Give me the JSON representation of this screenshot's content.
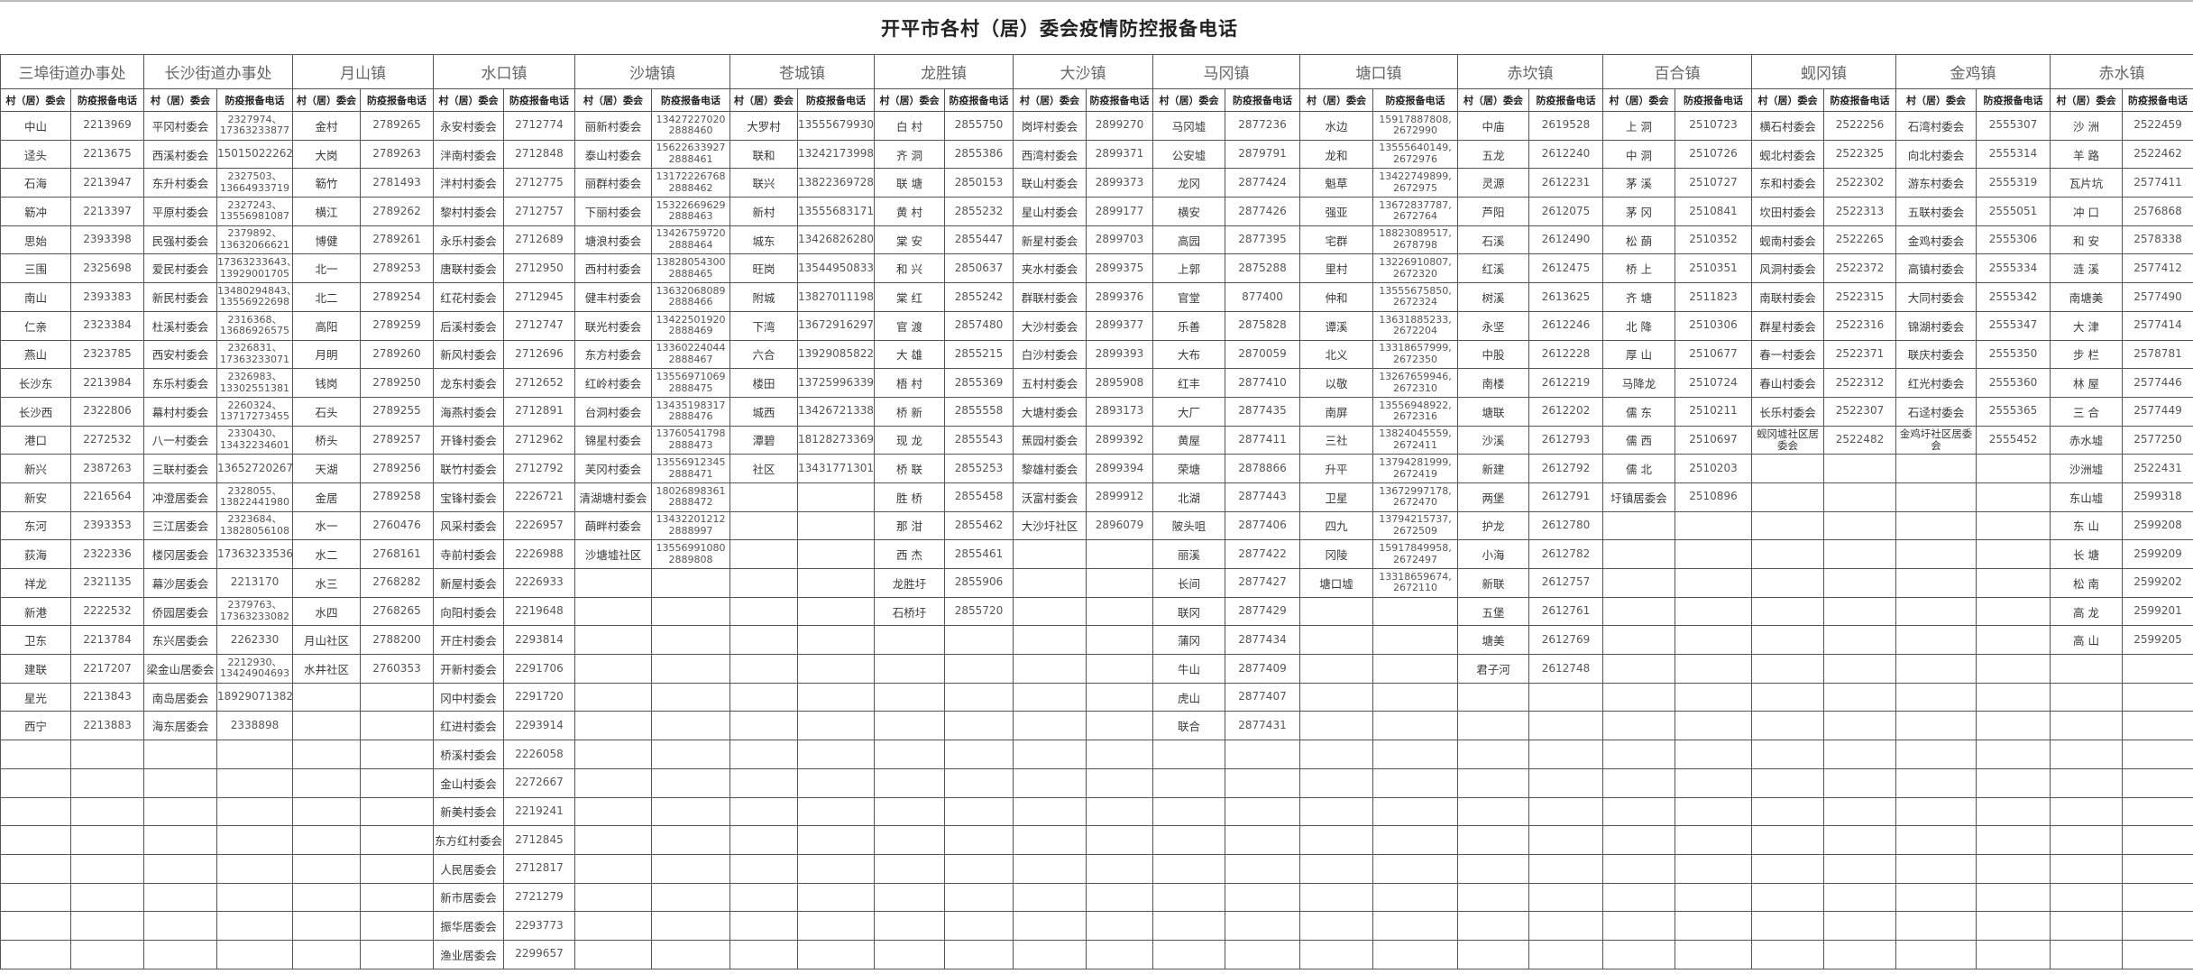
{
  "title": "开平市各村（居）委会疫情防控报备电话",
  "col_name_label": "村（居）委会",
  "col_phone_label": "防疫报备电话",
  "towns": [
    {
      "name": "三埠街道办事处",
      "rows": [
        [
          "中山",
          "2213969"
        ],
        [
          "迳头",
          "2213675"
        ],
        [
          "石海",
          "2213947"
        ],
        [
          "簕冲",
          "2213397"
        ],
        [
          "思始",
          "2393398"
        ],
        [
          "三围",
          "2325698"
        ],
        [
          "南山",
          "2393383"
        ],
        [
          "仁亲",
          "2323384"
        ],
        [
          "燕山",
          "2323785"
        ],
        [
          "长沙东",
          "2213984"
        ],
        [
          "长沙西",
          "2322806"
        ],
        [
          "港口",
          "2272532"
        ],
        [
          "新兴",
          "2387263"
        ],
        [
          "新安",
          "2216564"
        ],
        [
          "东河",
          "2393353"
        ],
        [
          "荻海",
          "2322336"
        ],
        [
          "祥龙",
          "2321135"
        ],
        [
          "新港",
          "2222532"
        ],
        [
          "卫东",
          "2213784"
        ],
        [
          "建联",
          "2217207"
        ],
        [
          "星光",
          "2213843"
        ],
        [
          "西宁",
          "2213883"
        ]
      ]
    },
    {
      "name": "长沙街道办事处",
      "rows": [
        [
          "平冈村委会",
          "2327974、\n17363233877"
        ],
        [
          "西溪村委会",
          "15015022262"
        ],
        [
          "东升村委会",
          "2327503、\n13664933719"
        ],
        [
          "平原村委会",
          "2327243、\n13556981087"
        ],
        [
          "民强村委会",
          "2379892、\n13632066621"
        ],
        [
          "爱民村委会",
          "17363233643、\n13929001705"
        ],
        [
          "新民村委会",
          "13480294843、\n13556922698"
        ],
        [
          "杜溪村委会",
          "2316368、\n13686926575"
        ],
        [
          "西安村委会",
          "2326831、\n17363233071"
        ],
        [
          "东乐村委会",
          "2326983、\n13302551381"
        ],
        [
          "幕村村委会",
          "2260324、\n13717273455"
        ],
        [
          "八一村委会",
          "2330430、\n13432234601"
        ],
        [
          "三联村委会",
          "13652720267"
        ],
        [
          "冲澄居委会",
          "2328055、\n13822441980"
        ],
        [
          "三江居委会",
          "2323684、\n13828056108"
        ],
        [
          "楼冈居委会",
          "17363233536"
        ],
        [
          "幕沙居委会",
          "2213170"
        ],
        [
          "侨园居委会",
          "2379763、\n17363233082"
        ],
        [
          "东兴居委会",
          "2262330"
        ],
        [
          "梁金山居委会",
          "2212930、\n13424904693"
        ],
        [
          "南岛居委会",
          "18929071382"
        ],
        [
          "海东居委会",
          "2338898"
        ]
      ]
    },
    {
      "name": "月山镇",
      "rows": [
        [
          "金村",
          "2789265"
        ],
        [
          "大岗",
          "2789263"
        ],
        [
          "簕竹",
          "2781493"
        ],
        [
          "横江",
          "2789262"
        ],
        [
          "博健",
          "2789261"
        ],
        [
          "北一",
          "2789253"
        ],
        [
          "北二",
          "2789254"
        ],
        [
          "高阳",
          "2789259"
        ],
        [
          "月明",
          "2789260"
        ],
        [
          "钱岗",
          "2789250"
        ],
        [
          "石头",
          "2789255"
        ],
        [
          "桥头",
          "2789257"
        ],
        [
          "天湖",
          "2789256"
        ],
        [
          "金居",
          "2789258"
        ],
        [
          "水一",
          "2760476"
        ],
        [
          "水二",
          "2768161"
        ],
        [
          "水三",
          "2768282"
        ],
        [
          "水四",
          "2768265"
        ],
        [
          "月山社区",
          "2788200"
        ],
        [
          "水井社区",
          "2760353"
        ]
      ]
    },
    {
      "name": "水口镇",
      "rows": [
        [
          "永安村委会",
          "2712774"
        ],
        [
          "泮南村委会",
          "2712848"
        ],
        [
          "泮村村委会",
          "2712775"
        ],
        [
          "黎村村委会",
          "2712757"
        ],
        [
          "永乐村委会",
          "2712689"
        ],
        [
          "唐联村委会",
          "2712950"
        ],
        [
          "红花村委会",
          "2712945"
        ],
        [
          "后溪村委会",
          "2712747"
        ],
        [
          "新风村委会",
          "2712696"
        ],
        [
          "龙东村委会",
          "2712652"
        ],
        [
          "海燕村委会",
          "2712891"
        ],
        [
          "开锋村委会",
          "2712962"
        ],
        [
          "联竹村委会",
          "2712792"
        ],
        [
          "宝锋村委会",
          "2226721"
        ],
        [
          "风采村委会",
          "2226957"
        ],
        [
          "寺前村委会",
          "2226988"
        ],
        [
          "新屋村委会",
          "2226933"
        ],
        [
          "向阳村委会",
          "2219648"
        ],
        [
          "开庄村委会",
          "2293814"
        ],
        [
          "开新村委会",
          "2291706"
        ],
        [
          "冈中村委会",
          "2291720"
        ],
        [
          "红进村委会",
          "2293914"
        ],
        [
          "桥溪村委会",
          "2226058"
        ],
        [
          "金山村委会",
          "2272667"
        ],
        [
          "新美村委会",
          "2219241"
        ],
        [
          "东方红村委会",
          "2712845"
        ],
        [
          "人民居委会",
          "2712817"
        ],
        [
          "新市居委会",
          "2721279"
        ],
        [
          "振华居委会",
          "2293773"
        ],
        [
          "渔业居委会",
          "2299657"
        ]
      ]
    },
    {
      "name": "沙塘镇",
      "rows": [
        [
          "丽新村委会",
          "13427227020\n2888460"
        ],
        [
          "泰山村委会",
          "15622633927\n2888461"
        ],
        [
          "丽群村委会",
          "13172226768\n2888462"
        ],
        [
          "下丽村委会",
          "15322669629\n2888463"
        ],
        [
          "塘浪村委会",
          "13426759720\n2888464"
        ],
        [
          "西村村委会",
          "13828054300\n2888465"
        ],
        [
          "健丰村委会",
          "13632068089\n2888466"
        ],
        [
          "联光村委会",
          "13422501920\n2888469"
        ],
        [
          "东方村委会",
          "13360224044\n2888467"
        ],
        [
          "红岭村委会",
          "13556971069\n2888475"
        ],
        [
          "台洞村委会",
          "13435198317\n2888476"
        ],
        [
          "锦星村委会",
          "13760541798\n2888473"
        ],
        [
          "芙冈村委会",
          "13556912345\n2888471"
        ],
        [
          "清湖塘村委会",
          "18026898361\n2888472"
        ],
        [
          "蓢畔村委会",
          "13432201212\n2888997"
        ],
        [
          "沙塘墟社区",
          "13556991080\n2889808"
        ]
      ]
    },
    {
      "name": "苍城镇",
      "rows": [
        [
          "大罗村",
          "13555679930"
        ],
        [
          "联和",
          "13242173998"
        ],
        [
          "联兴",
          "13822369728"
        ],
        [
          "新村",
          "13555683171"
        ],
        [
          "城东",
          "13426826280"
        ],
        [
          "旺岗",
          "13544950833"
        ],
        [
          "附城",
          "13827011198"
        ],
        [
          "下湾",
          "13672916297"
        ],
        [
          "六合",
          "13929085822"
        ],
        [
          "楼田",
          "13725996339"
        ],
        [
          "城西",
          "13426721338"
        ],
        [
          "潭碧",
          "18128273369"
        ],
        [
          "社区",
          "13431771301"
        ]
      ]
    },
    {
      "name": "龙胜镇",
      "rows": [
        [
          "白 村",
          "2855750"
        ],
        [
          "齐 洞",
          "2855386"
        ],
        [
          "联 塘",
          "2850153"
        ],
        [
          "黄 村",
          "2855232"
        ],
        [
          "棠 安",
          "2855447"
        ],
        [
          "和 兴",
          "2850637"
        ],
        [
          "棠 红",
          "2855242"
        ],
        [
          "官 渡",
          "2857480"
        ],
        [
          "大 雄",
          "2855215"
        ],
        [
          "梧 村",
          "2855369"
        ],
        [
          "桥 新",
          "2855558"
        ],
        [
          "现 龙",
          "2855543"
        ],
        [
          "桥 联",
          "2855253"
        ],
        [
          "胜 桥",
          "2855458"
        ],
        [
          "那 泔",
          "2855462"
        ],
        [
          "西 杰",
          "2855461"
        ],
        [
          "龙胜圩",
          "2855906"
        ],
        [
          "石桥圩",
          "2855720"
        ]
      ]
    },
    {
      "name": "大沙镇",
      "rows": [
        [
          "岗坪村委会",
          "2899270"
        ],
        [
          "西湾村委会",
          "2899371"
        ],
        [
          "联山村委会",
          "2899373"
        ],
        [
          "星山村委会",
          "2899177"
        ],
        [
          "新星村委会",
          "2899703"
        ],
        [
          "夹水村委会",
          "2899375"
        ],
        [
          "群联村委会",
          "2899376"
        ],
        [
          "大沙村委会",
          "2899377"
        ],
        [
          "白沙村委会",
          "2899393"
        ],
        [
          "五村村委会",
          "2895908"
        ],
        [
          "大塘村委会",
          "2893173"
        ],
        [
          "蕉园村委会",
          "2899392"
        ],
        [
          "黎雄村委会",
          "2899394"
        ],
        [
          "沃富村委会",
          "2899912"
        ],
        [
          "大沙圩社区",
          "2896079"
        ]
      ]
    },
    {
      "name": "马冈镇",
      "rows": [
        [
          "马冈墟",
          "2877236"
        ],
        [
          "公安墟",
          "2879791"
        ],
        [
          "龙冈",
          "2877424"
        ],
        [
          "横安",
          "2877426"
        ],
        [
          "高园",
          "2877395"
        ],
        [
          "上郭",
          "2875288"
        ],
        [
          "官堂",
          "877400"
        ],
        [
          "乐善",
          "2875828"
        ],
        [
          "大布",
          "2870059"
        ],
        [
          "红丰",
          "2877410"
        ],
        [
          "大厂",
          "2877435"
        ],
        [
          "黄屋",
          "2877411"
        ],
        [
          "荣塘",
          "2878866"
        ],
        [
          "北湖",
          "2877443"
        ],
        [
          "陂头咀",
          "2877406"
        ],
        [
          "丽溪",
          "2877422"
        ],
        [
          "长间",
          "2877427"
        ],
        [
          "联冈",
          "2877429"
        ],
        [
          "蒲冈",
          "2877434"
        ],
        [
          "牛山",
          "2877409"
        ],
        [
          "虎山",
          "2877407"
        ],
        [
          "联合",
          "2877431"
        ]
      ]
    },
    {
      "name": "塘口镇",
      "rows": [
        [
          "水边",
          "15917887808,\n2672990"
        ],
        [
          "龙和",
          "13555640149,\n2672976"
        ],
        [
          "魁草",
          "13422749899,\n2672975"
        ],
        [
          "强亚",
          "13672837787,\n2672764"
        ],
        [
          "宅群",
          "18823089517,\n2678798"
        ],
        [
          "里村",
          "13226910807,\n2672320"
        ],
        [
          "仲和",
          "13555675850,\n2672324"
        ],
        [
          "谭溪",
          "13631885233,\n2672204"
        ],
        [
          "北义",
          "13318657999,\n2672350"
        ],
        [
          "以敬",
          "13267659946,\n2672310"
        ],
        [
          "南屏",
          "13556948922,\n2672316"
        ],
        [
          "三社",
          "13824045559,\n2672411"
        ],
        [
          "升平",
          "13794281999,\n2672419"
        ],
        [
          "卫星",
          "13672997178,\n2672470"
        ],
        [
          "四九",
          "13794215737,\n2672509"
        ],
        [
          "冈陵",
          "15917849958,\n2672497"
        ],
        [
          "塘口墟",
          "13318659674,\n2672110"
        ]
      ]
    },
    {
      "name": "赤坎镇",
      "rows": [
        [
          "中庙",
          "2619528"
        ],
        [
          "五龙",
          "2612240"
        ],
        [
          "灵源",
          "2612231"
        ],
        [
          "芦阳",
          "2612075"
        ],
        [
          "石溪",
          "2612490"
        ],
        [
          "红溪",
          "2612475"
        ],
        [
          "树溪",
          "2613625"
        ],
        [
          "永坚",
          "2612246"
        ],
        [
          "中股",
          "2612228"
        ],
        [
          "南楼",
          "2612219"
        ],
        [
          "塘联",
          "2612202"
        ],
        [
          "沙溪",
          "2612793"
        ],
        [
          "新建",
          "2612792"
        ],
        [
          "两堡",
          "2612791"
        ],
        [
          "护龙",
          "2612780"
        ],
        [
          "小海",
          "2612782"
        ],
        [
          "新联",
          "2612757"
        ],
        [
          "五堡",
          "2612761"
        ],
        [
          "塘美",
          "2612769"
        ],
        [
          "君子河",
          "2612748"
        ]
      ]
    },
    {
      "name": "百合镇",
      "rows": [
        [
          "上 洞",
          "2510723"
        ],
        [
          "中 洞",
          "2510726"
        ],
        [
          "茅 溪",
          "2510727"
        ],
        [
          "茅 冈",
          "2510841"
        ],
        [
          "松 蓢",
          "2510352"
        ],
        [
          "桥 上",
          "2510351"
        ],
        [
          "齐  塘",
          "2511823"
        ],
        [
          "北 降",
          "2510306"
        ],
        [
          "厚 山",
          "2510677"
        ],
        [
          "马降龙",
          "2510724"
        ],
        [
          "儒 东",
          "2510211"
        ],
        [
          "儒 西",
          "2510697"
        ],
        [
          "儒 北",
          "2510203"
        ],
        [
          "圩镇居委会",
          "2510896"
        ]
      ]
    },
    {
      "name": "蚬冈镇",
      "rows": [
        [
          "横石村委会",
          "2522256"
        ],
        [
          "蚬北村委会",
          "2522325"
        ],
        [
          "东和村委会",
          "2522302"
        ],
        [
          "坎田村委会",
          "2522313"
        ],
        [
          "蚬南村委会",
          "2522265"
        ],
        [
          "风洞村委会",
          "2522372"
        ],
        [
          "南联村委会",
          "2522315"
        ],
        [
          "群星村委会",
          "2522316"
        ],
        [
          "春一村委会",
          "2522371"
        ],
        [
          "春山村委会",
          "2522312"
        ],
        [
          "长乐村委会",
          "2522307"
        ],
        [
          "蚬冈墟社区居委会",
          "2522482"
        ]
      ]
    },
    {
      "name": "金鸡镇",
      "rows": [
        [
          "石湾村委会",
          "2555307"
        ],
        [
          "向北村委会",
          "2555314"
        ],
        [
          "游东村委会",
          "2555319"
        ],
        [
          "五联村委会",
          "2555051"
        ],
        [
          "金鸡村委会",
          "2555306"
        ],
        [
          "高镇村委会",
          "2555334"
        ],
        [
          "大同村委会",
          "2555342"
        ],
        [
          "锦湖村委会",
          "2555347"
        ],
        [
          "联庆村委会",
          "2555350"
        ],
        [
          "红光村委会",
          "2555360"
        ],
        [
          "石迳村委会",
          "2555365"
        ],
        [
          "金鸡圩社区居委会",
          "2555452"
        ]
      ]
    },
    {
      "name": "赤水镇",
      "rows": [
        [
          "沙 洲",
          "2522459"
        ],
        [
          "羊 路",
          "2522462"
        ],
        [
          "瓦片坑",
          "2577411"
        ],
        [
          "冲 口",
          "2576868"
        ],
        [
          "和 安",
          "2578338"
        ],
        [
          "涟 溪",
          "2577412"
        ],
        [
          "南塘美",
          "2577490"
        ],
        [
          "大 津",
          "2577414"
        ],
        [
          "步 栏",
          "2578781"
        ],
        [
          "林 屋",
          "2577446"
        ],
        [
          "三 合",
          "2577449"
        ],
        [
          "赤水墟",
          "2577250"
        ],
        [
          "沙洲墟",
          "2522431"
        ],
        [
          "东山墟",
          "2599318"
        ],
        [
          "东 山",
          "2599208"
        ],
        [
          "长 塘",
          "2599209"
        ],
        [
          "松 南",
          "2599202"
        ],
        [
          "高 龙",
          "2599201"
        ],
        [
          "高 山",
          "2599205"
        ]
      ]
    }
  ]
}
